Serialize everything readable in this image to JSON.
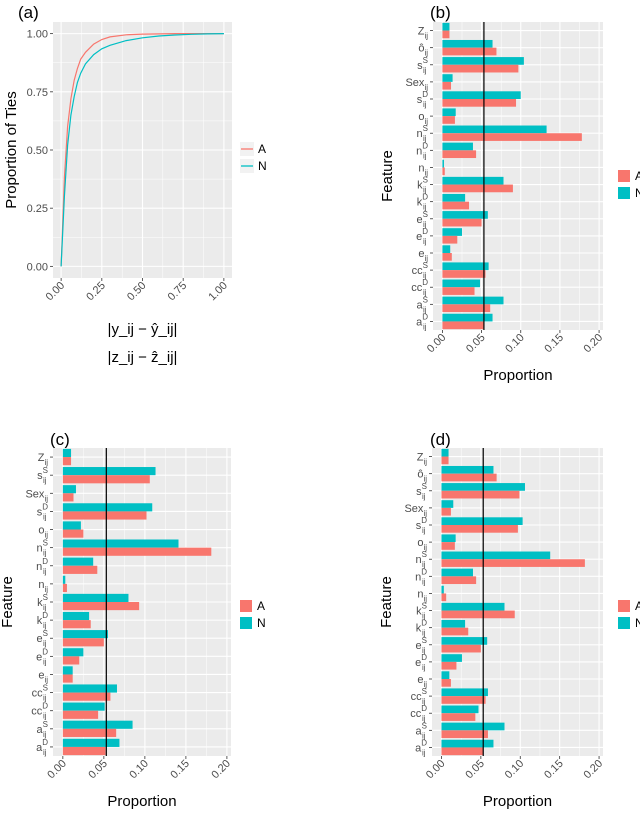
{
  "colors": {
    "A": "#F8766D",
    "N": "#00BFC4",
    "panel_bg": "#EBEBEB",
    "grid": "#FFFFFF"
  },
  "legend": {
    "keys": [
      "A",
      "N"
    ]
  },
  "chart_data": [
    {
      "id": "a",
      "panel_label": "(a)",
      "type": "line",
      "ylabel": "Proportion of Ties",
      "xlabel_line1": "|y_ij − ŷ_ij|",
      "xlabel_line2": "|z_ij − ẑ_ij|",
      "xlim": [
        -0.05,
        1.05
      ],
      "ylim": [
        -0.05,
        1.05
      ],
      "x_ticks": [
        "0.00",
        "0.25",
        "0.50",
        "0.75",
        "1.00"
      ],
      "y_ticks": [
        "0.00",
        "0.25",
        "0.50",
        "0.75",
        "1.00"
      ],
      "series": [
        {
          "name": "A",
          "x": [
            0,
            0.02,
            0.04,
            0.06,
            0.08,
            0.1,
            0.12,
            0.15,
            0.2,
            0.25,
            0.3,
            0.4,
            0.5,
            0.6,
            0.7,
            0.8,
            0.9,
            1.0
          ],
          "y": [
            0,
            0.38,
            0.6,
            0.72,
            0.8,
            0.85,
            0.89,
            0.92,
            0.955,
            0.975,
            0.986,
            0.995,
            0.998,
            0.999,
            1.0,
            1.0,
            1.0,
            1.0
          ]
        },
        {
          "name": "N",
          "x": [
            0,
            0.02,
            0.04,
            0.06,
            0.08,
            0.1,
            0.12,
            0.15,
            0.2,
            0.25,
            0.3,
            0.4,
            0.5,
            0.6,
            0.7,
            0.8,
            0.9,
            1.0
          ],
          "y": [
            0,
            0.3,
            0.52,
            0.65,
            0.73,
            0.79,
            0.83,
            0.87,
            0.91,
            0.935,
            0.95,
            0.97,
            0.982,
            0.99,
            0.994,
            0.997,
            0.999,
            1.0
          ]
        }
      ]
    },
    {
      "id": "b",
      "panel_label": "(b)",
      "type": "bar",
      "ylabel": "Feature",
      "xlabel": "Proportion",
      "xlim": [
        -0.012,
        0.205
      ],
      "x_ticks": [
        "0.00",
        "0.05",
        "0.10",
        "0.15",
        "0.20"
      ],
      "vline": 0.053,
      "categories": [
        {
          "base": "Z",
          "sub": "ij",
          "sup": ""
        },
        {
          "base": "ô",
          "sub": "ij",
          "sup": ""
        },
        {
          "base": "s",
          "sub": "ij",
          "sup": "S"
        },
        {
          "base": "Sex",
          "sub": "ij",
          "sup": ""
        },
        {
          "base": "s",
          "sub": "ij",
          "sup": "D"
        },
        {
          "base": "o",
          "sub": "ij",
          "sup": ""
        },
        {
          "base": "n",
          "sub": "ij",
          "sup": "S"
        },
        {
          "base": "n",
          "sub": "ij",
          "sup": "D"
        },
        {
          "base": "n",
          "sub": "ij",
          "sup": ""
        },
        {
          "base": "k",
          "sub": "ij",
          "sup": "S"
        },
        {
          "base": "k",
          "sub": "ij",
          "sup": "D"
        },
        {
          "base": "e",
          "sub": "ij",
          "sup": "S"
        },
        {
          "base": "e",
          "sub": "ij",
          "sup": "D"
        },
        {
          "base": "e",
          "sub": "ij",
          "sup": ""
        },
        {
          "base": "cc",
          "sub": "ij",
          "sup": "S"
        },
        {
          "base": "cc",
          "sub": "ij",
          "sup": "D"
        },
        {
          "base": "a",
          "sub": "ij",
          "sup": "S"
        },
        {
          "base": "a",
          "sub": "ij",
          "sup": "D"
        }
      ],
      "series": [
        {
          "name": "A",
          "values": [
            0.009,
            0.069,
            0.097,
            0.011,
            0.094,
            0.016,
            0.178,
            0.043,
            0.003,
            0.09,
            0.034,
            0.05,
            0.019,
            0.012,
            0.055,
            0.041,
            0.061,
            0.053
          ]
        },
        {
          "name": "N",
          "values": [
            0.009,
            0.064,
            0.104,
            0.013,
            0.1,
            0.017,
            0.133,
            0.039,
            0.002,
            0.078,
            0.029,
            0.058,
            0.025,
            0.01,
            0.059,
            0.048,
            0.078,
            0.064
          ]
        }
      ]
    },
    {
      "id": "c",
      "panel_label": "(c)",
      "type": "bar",
      "ylabel": "Feature",
      "xlabel": "Proportion",
      "xlim": [
        -0.012,
        0.205
      ],
      "x_ticks": [
        "0.00",
        "0.05",
        "0.10",
        "0.15",
        "0.20"
      ],
      "vline": 0.053,
      "categories": [
        {
          "base": "Z",
          "sub": "ij",
          "sup": ""
        },
        {
          "base": "s",
          "sub": "ij",
          "sup": "S"
        },
        {
          "base": "Sex",
          "sub": "ij",
          "sup": ""
        },
        {
          "base": "s",
          "sub": "ij",
          "sup": "D"
        },
        {
          "base": "o",
          "sub": "ij",
          "sup": ""
        },
        {
          "base": "n",
          "sub": "ij",
          "sup": "S"
        },
        {
          "base": "n",
          "sub": "ij",
          "sup": "D"
        },
        {
          "base": "n",
          "sub": "ij",
          "sup": ""
        },
        {
          "base": "k",
          "sub": "ij",
          "sup": "S"
        },
        {
          "base": "k",
          "sub": "ij",
          "sup": "D"
        },
        {
          "base": "e",
          "sub": "ij",
          "sup": "S"
        },
        {
          "base": "e",
          "sub": "ij",
          "sup": "D"
        },
        {
          "base": "e",
          "sub": "ij",
          "sup": ""
        },
        {
          "base": "cc",
          "sub": "ij",
          "sup": "S"
        },
        {
          "base": "cc",
          "sub": "ij",
          "sup": "D"
        },
        {
          "base": "a",
          "sub": "ij",
          "sup": "S"
        },
        {
          "base": "a",
          "sub": "ij",
          "sup": "D"
        }
      ],
      "series": [
        {
          "name": "A",
          "values": [
            0.01,
            0.106,
            0.013,
            0.102,
            0.025,
            0.181,
            0.042,
            0.005,
            0.093,
            0.034,
            0.05,
            0.02,
            0.012,
            0.058,
            0.043,
            0.065,
            0.052
          ]
        },
        {
          "name": "N",
          "values": [
            0.01,
            0.113,
            0.016,
            0.109,
            0.022,
            0.141,
            0.037,
            0.003,
            0.08,
            0.032,
            0.055,
            0.025,
            0.012,
            0.066,
            0.051,
            0.085,
            0.069
          ]
        }
      ]
    },
    {
      "id": "d",
      "panel_label": "(d)",
      "type": "bar",
      "ylabel": "Feature",
      "xlabel": "Proportion",
      "xlim": [
        -0.012,
        0.205
      ],
      "x_ticks": [
        "0.00",
        "0.05",
        "0.10",
        "0.15",
        "0.20"
      ],
      "vline": 0.053,
      "categories": [
        {
          "base": "Z",
          "sub": "ij",
          "sup": ""
        },
        {
          "base": "ô",
          "sub": "ij",
          "sup": ""
        },
        {
          "base": "s",
          "sub": "ij",
          "sup": "S"
        },
        {
          "base": "Sex",
          "sub": "ij",
          "sup": ""
        },
        {
          "base": "s",
          "sub": "ij",
          "sup": "D"
        },
        {
          "base": "o",
          "sub": "ij",
          "sup": ""
        },
        {
          "base": "n",
          "sub": "ij",
          "sup": "S"
        },
        {
          "base": "n",
          "sub": "ij",
          "sup": "D"
        },
        {
          "base": "n",
          "sub": "ij",
          "sup": ""
        },
        {
          "base": "k",
          "sub": "ij",
          "sup": "S"
        },
        {
          "base": "k",
          "sub": "ij",
          "sup": "D"
        },
        {
          "base": "e",
          "sub": "ij",
          "sup": "S"
        },
        {
          "base": "e",
          "sub": "ij",
          "sup": "D"
        },
        {
          "base": "e",
          "sub": "ij",
          "sup": ""
        },
        {
          "base": "cc",
          "sub": "ij",
          "sup": "S"
        },
        {
          "base": "cc",
          "sub": "ij",
          "sup": "D"
        },
        {
          "base": "a",
          "sub": "ij",
          "sup": "S"
        },
        {
          "base": "a",
          "sub": "ij",
          "sup": "D"
        }
      ],
      "series": [
        {
          "name": "A",
          "values": [
            0.009,
            0.07,
            0.099,
            0.012,
            0.097,
            0.017,
            0.182,
            0.044,
            0.006,
            0.093,
            0.034,
            0.05,
            0.019,
            0.012,
            0.056,
            0.043,
            0.059,
            0.053
          ]
        },
        {
          "name": "N",
          "values": [
            0.009,
            0.066,
            0.106,
            0.015,
            0.103,
            0.018,
            0.138,
            0.04,
            0.003,
            0.08,
            0.03,
            0.058,
            0.026,
            0.01,
            0.059,
            0.047,
            0.08,
            0.066
          ]
        }
      ]
    }
  ]
}
